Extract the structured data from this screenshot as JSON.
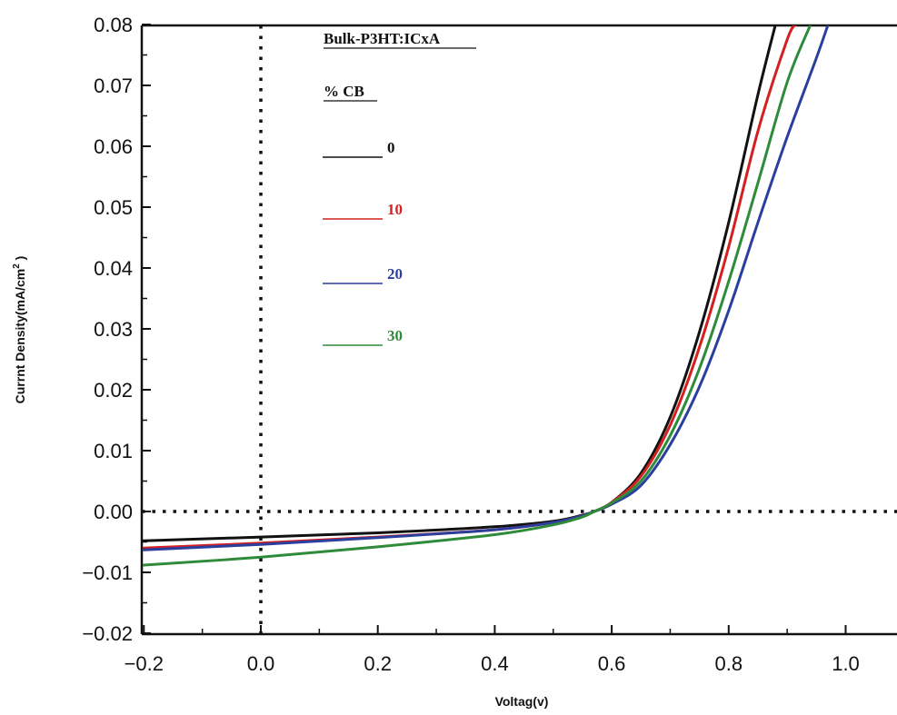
{
  "chart_data": {
    "type": "line",
    "title": "",
    "xlabel": "Voltag(v)",
    "ylabel": "Currnt Density(mA/cm",
    "ylabel_sup": "2",
    "ylabel_close": " )",
    "xlim": [
      -0.2,
      1.1
    ],
    "ylim": [
      -0.02,
      0.08
    ],
    "x_ticks": [
      -0.2,
      0.0,
      0.2,
      0.4,
      0.6,
      0.8,
      1.0
    ],
    "x_tick_labels": [
      "−0.2",
      "0.0",
      "0.2",
      "0.4",
      "0.6",
      "0.8",
      "1.0"
    ],
    "y_ticks": [
      -0.02,
      -0.01,
      0.0,
      0.01,
      0.02,
      0.03,
      0.04,
      0.05,
      0.06,
      0.07,
      0.08
    ],
    "y_tick_labels": [
      "−0.02",
      "−0.01",
      "0.00",
      "0.01",
      "0.02",
      "0.03",
      "0.04",
      "0.05",
      "0.06",
      "0.07",
      "0.08"
    ],
    "reference_lines": {
      "x": 0.0,
      "y": 0.0
    },
    "grid": false,
    "legend": {
      "position": "top-left",
      "title": "Bulk-P3HT:ICxA",
      "subtitle": "% CB"
    },
    "series": [
      {
        "name": "0",
        "color": "#111111",
        "x": [
          -0.2,
          0.0,
          0.2,
          0.4,
          0.5,
          0.55,
          0.57,
          0.6,
          0.65,
          0.7,
          0.75,
          0.8,
          0.85,
          0.88
        ],
        "y": [
          -0.0048,
          -0.0042,
          -0.0035,
          -0.0025,
          -0.0016,
          -0.0006,
          0.0,
          0.0015,
          0.0063,
          0.0155,
          0.0295,
          0.0475,
          0.0685,
          0.08
        ]
      },
      {
        "name": "10",
        "color": "#d42020",
        "x": [
          -0.2,
          0.0,
          0.2,
          0.4,
          0.5,
          0.55,
          0.57,
          0.6,
          0.65,
          0.7,
          0.75,
          0.8,
          0.85,
          0.9,
          0.915
        ],
        "y": [
          -0.006,
          -0.0052,
          -0.0042,
          -0.003,
          -0.0018,
          -0.0007,
          0.0,
          0.0015,
          0.0058,
          0.0142,
          0.027,
          0.0435,
          0.0625,
          0.0775,
          0.08
        ]
      },
      {
        "name": "20",
        "color": "#2a3f9e",
        "x": [
          -0.2,
          0.0,
          0.2,
          0.4,
          0.5,
          0.55,
          0.57,
          0.6,
          0.65,
          0.7,
          0.75,
          0.8,
          0.85,
          0.9,
          0.95,
          0.97
        ],
        "y": [
          -0.0063,
          -0.0054,
          -0.0043,
          -0.003,
          -0.0018,
          -0.0007,
          0.0,
          0.0012,
          0.0043,
          0.011,
          0.0205,
          0.033,
          0.0475,
          0.0615,
          0.0745,
          0.08
        ]
      },
      {
        "name": "30",
        "color": "#2e8b3a",
        "x": [
          -0.2,
          0.0,
          0.2,
          0.4,
          0.5,
          0.55,
          0.57,
          0.6,
          0.65,
          0.7,
          0.75,
          0.8,
          0.85,
          0.9,
          0.94
        ],
        "y": [
          -0.0088,
          -0.0075,
          -0.0058,
          -0.0038,
          -0.0022,
          -0.0009,
          0.0,
          0.0014,
          0.005,
          0.0125,
          0.0235,
          0.0378,
          0.054,
          0.0705,
          0.08
        ]
      }
    ]
  }
}
